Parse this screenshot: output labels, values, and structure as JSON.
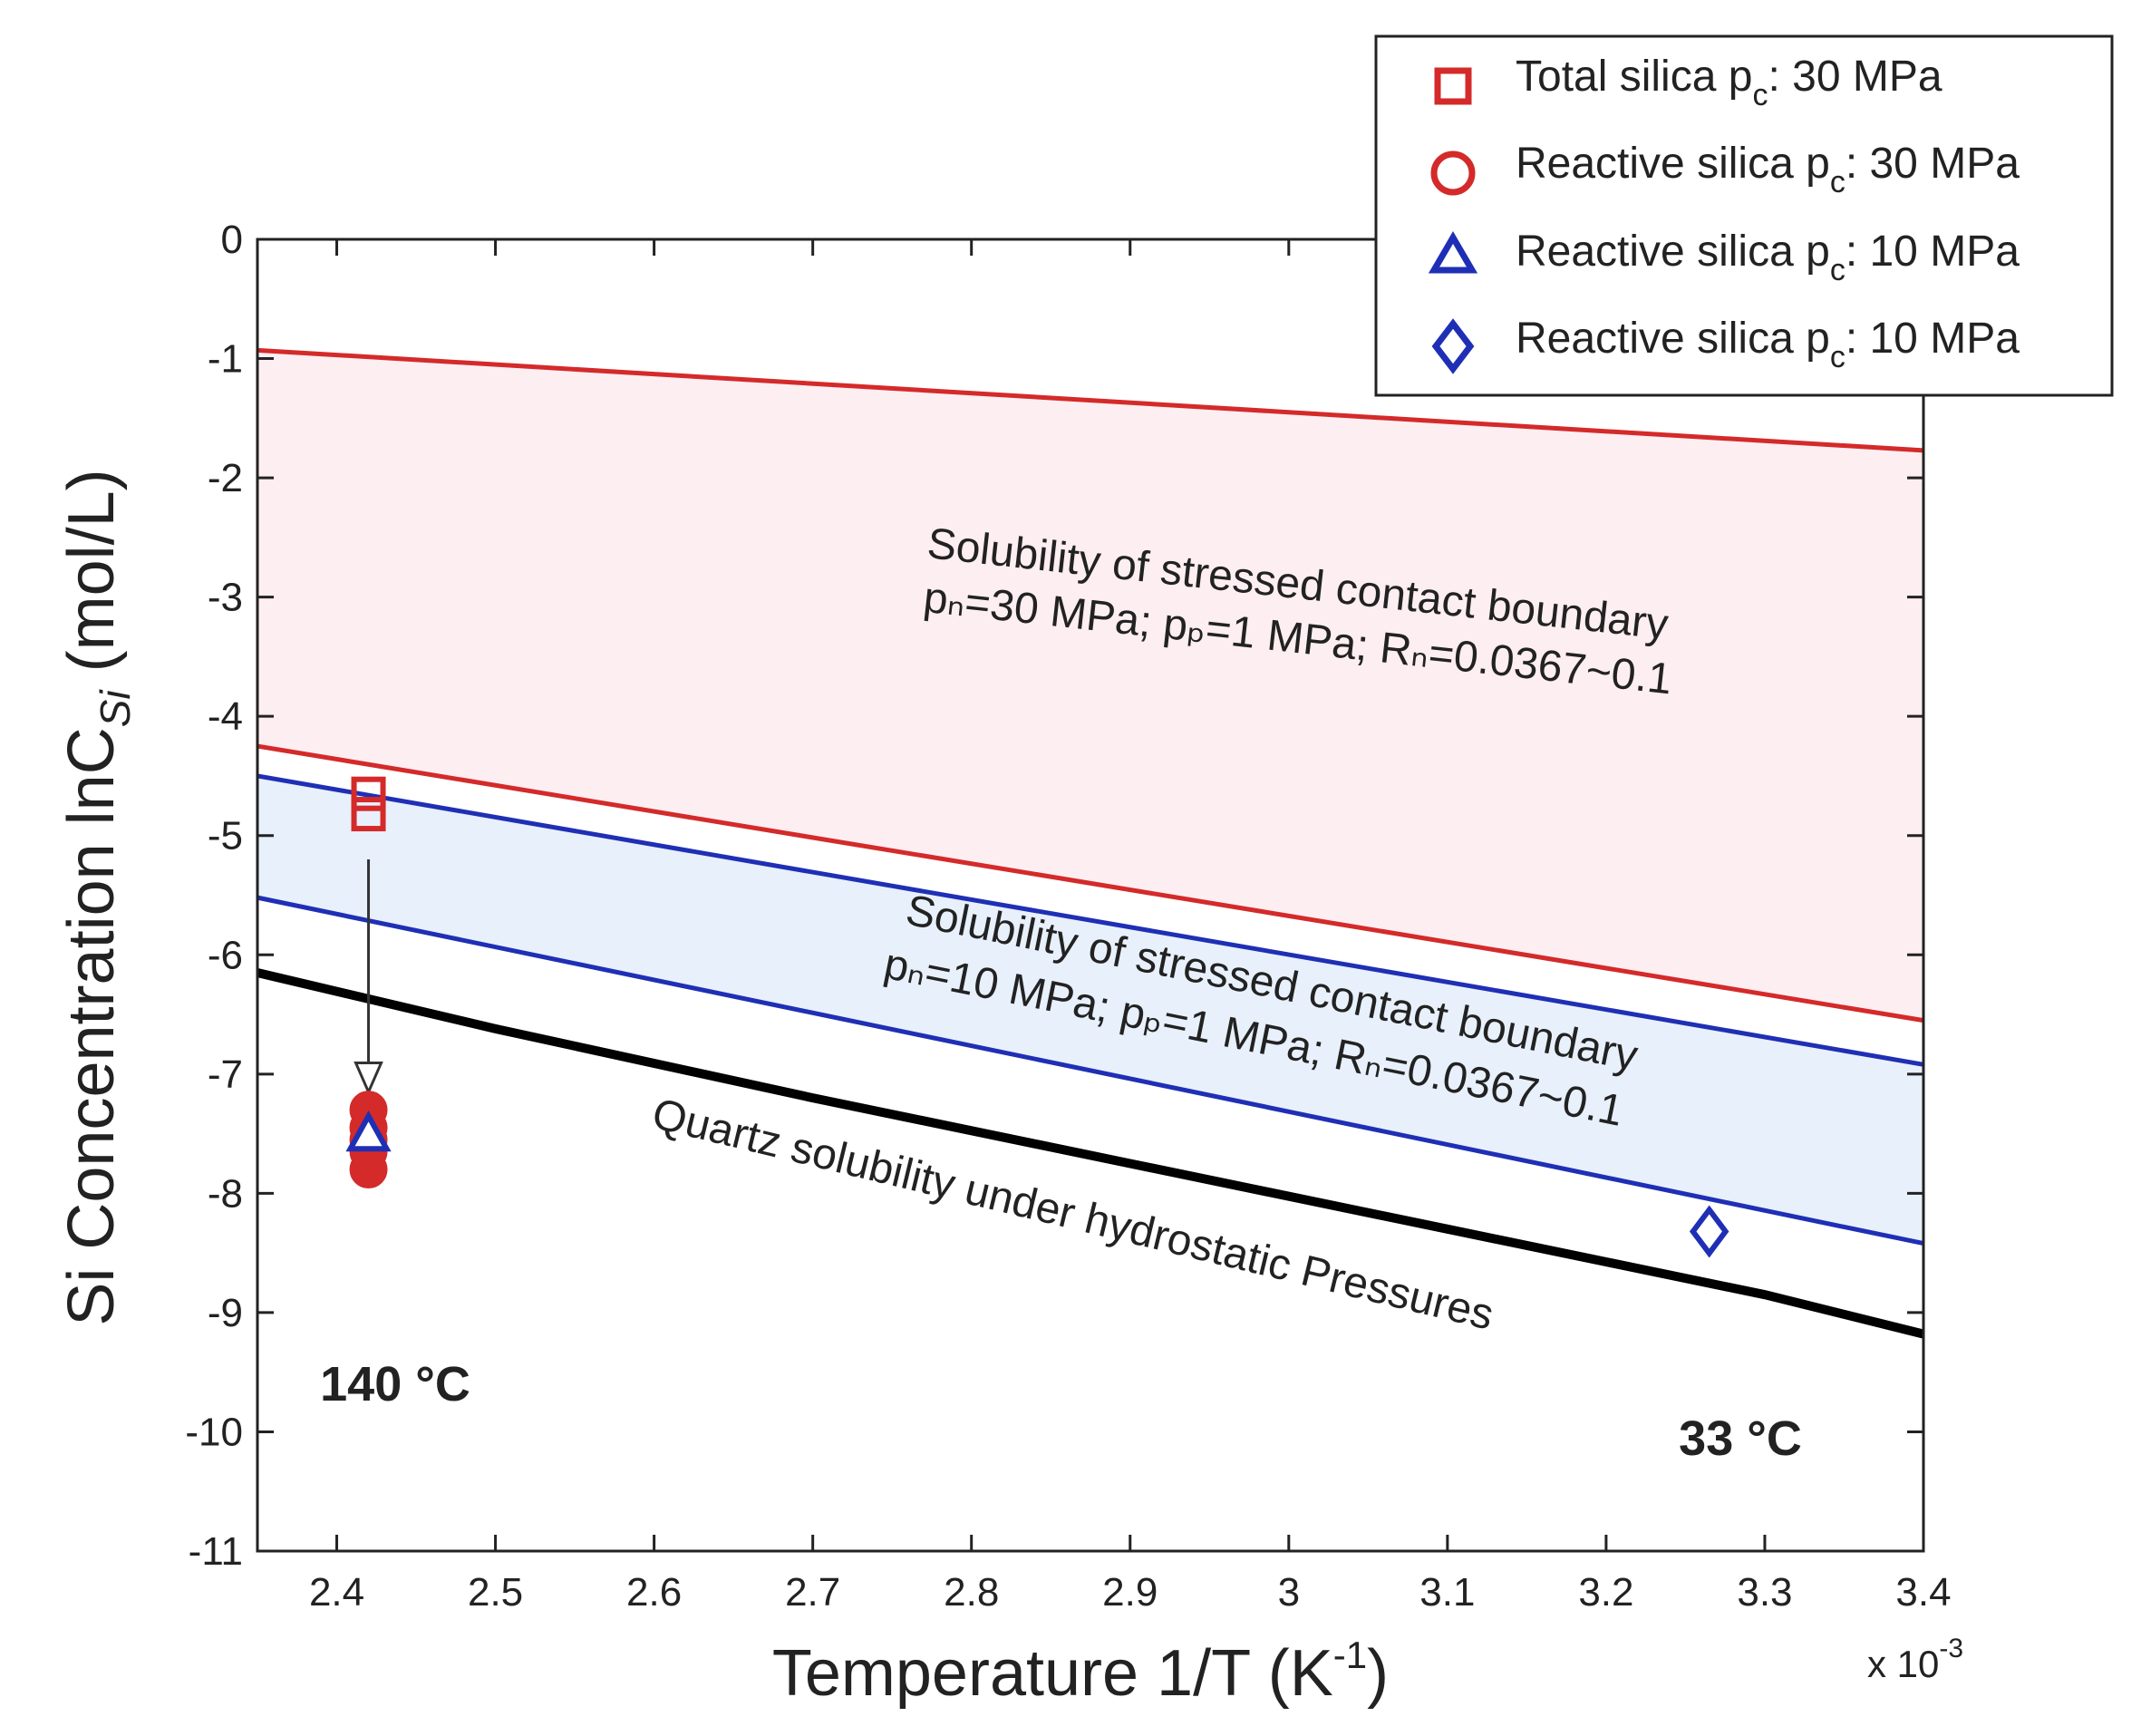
{
  "chart_data": {
    "type": "scatter",
    "xlabel": "Temperature 1/T (K",
    "xlabel_sup": "-1",
    "xlabel_end": ")",
    "ylabel": "Si Concentration lnC",
    "ylabel_sub": "Si",
    "ylabel_end": " (mol/L)",
    "x_multiplier_prefix": "x 10",
    "x_multiplier_exp": "-3",
    "xlim": [
      2.35,
      3.4
    ],
    "ylim": [
      -11,
      0
    ],
    "xticks": [
      2.4,
      2.5,
      2.6,
      2.7,
      2.8,
      2.9,
      3.0,
      3.1,
      3.2,
      3.3,
      3.4
    ],
    "xtick_labels": [
      "2.4",
      "2.5",
      "2.6",
      "2.7",
      "2.8",
      "2.9",
      "3",
      "3.1",
      "3.2",
      "3.3",
      "3.4"
    ],
    "yticks": [
      0,
      -1,
      -2,
      -3,
      -4,
      -5,
      -6,
      -7,
      -8,
      -9,
      -10,
      -11
    ],
    "ytick_labels": [
      "0",
      "-1",
      "-2",
      "-3",
      "-4",
      "-5",
      "-6",
      "-7",
      "-8",
      "-9",
      "-10",
      "-11"
    ],
    "bands": [
      {
        "name": "stressed-30MPa",
        "fill": "#fdeef2",
        "stroke": "#d42a2a",
        "upper": [
          [
            2.35,
            -0.93
          ],
          [
            3.4,
            -1.77
          ]
        ],
        "lower": [
          [
            2.35,
            -4.25
          ],
          [
            3.4,
            -6.55
          ]
        ],
        "label_line1": "Solubility of stressed contact boundary",
        "label_line2": "pₙ=30 MPa; pₚ=1 MPa; Rₙ=0.0367~0.1"
      },
      {
        "name": "stressed-10MPa",
        "fill": "#e8f0fb",
        "stroke": "#1f2fb5",
        "upper": [
          [
            2.35,
            -4.5
          ],
          [
            3.4,
            -6.92
          ]
        ],
        "lower": [
          [
            2.35,
            -5.52
          ],
          [
            3.4,
            -8.42
          ]
        ],
        "label_line1": "Solubility of stressed contact boundary",
        "label_line2": "pₙ=10 MPa; pₚ=1 MPa; Rₙ=0.0367~0.1"
      }
    ],
    "quartz_curve": {
      "label": "Quartz solubility under hydrostatic Pressures",
      "color": "#000000",
      "points": [
        [
          2.35,
          -6.15
        ],
        [
          2.5,
          -6.62
        ],
        [
          2.7,
          -7.2
        ],
        [
          2.9,
          -7.75
        ],
        [
          3.1,
          -8.3
        ],
        [
          3.3,
          -8.85
        ],
        [
          3.4,
          -9.18
        ]
      ]
    },
    "series": [
      {
        "name": "Total silica p",
        "sub": "c",
        "suffix": ": 30 MPa",
        "marker": "square",
        "color": "#d42a2a",
        "points": [
          [
            2.42,
            -4.65
          ],
          [
            2.42,
            -4.82
          ]
        ]
      },
      {
        "name": "Reactive silica p",
        "sub": "c",
        "suffix": ": 30 MPa",
        "marker": "circle",
        "color": "#d42a2a",
        "points": [
          [
            2.42,
            -7.3
          ],
          [
            2.42,
            -7.45
          ],
          [
            2.42,
            -7.55
          ],
          [
            2.42,
            -7.65
          ],
          [
            2.42,
            -7.8
          ]
        ]
      },
      {
        "name": "Reactive silica p",
        "sub": "c",
        "suffix": ": 10 MPa",
        "marker": "triangle",
        "color": "#1f2fb5",
        "points": [
          [
            2.42,
            -7.52
          ]
        ]
      },
      {
        "name": "Reactive silica p",
        "sub": "c",
        "suffix": ": 10 MPa",
        "marker": "diamond",
        "color": "#1f2fb5",
        "points": [
          [
            3.265,
            -8.32
          ]
        ]
      }
    ],
    "arrow": {
      "from": [
        2.42,
        -5.2
      ],
      "to": [
        2.42,
        -7.15
      ],
      "color": "#333333"
    },
    "annotations": [
      {
        "text": "140 °C",
        "x": 2.42,
        "y": -9.6
      },
      {
        "text": "33 °C",
        "x": 3.28,
        "y": -10.05
      }
    ],
    "legend_position": "top-right"
  }
}
